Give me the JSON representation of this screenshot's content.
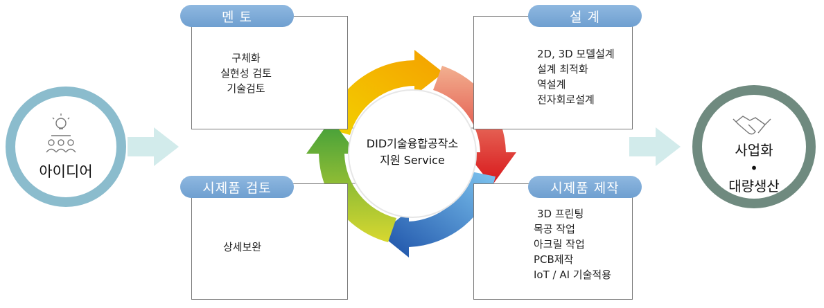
{
  "center": {
    "line1": "DID기술융합공작소",
    "line2": "지원 Service"
  },
  "idea": {
    "label": "아이디어"
  },
  "production": {
    "line1": "사업화",
    "bullet": "•",
    "line2": "대량생산"
  },
  "boxes": {
    "mentoring": {
      "title": "멘 토",
      "items": [
        "구체화",
        "실현성 검토",
        "기술검토"
      ]
    },
    "design": {
      "title": "설 계",
      "items": [
        "2D, 3D 모델설계",
        "설계 최적화",
        "역설계",
        "전자회로설계"
      ]
    },
    "prototype_review": {
      "title": "시제품 검토",
      "items": [
        "상세보완"
      ]
    },
    "prototype_making": {
      "title": "시제품 제작",
      "items": [
        "3D 프린팅",
        "목공 작업",
        "아크릴 작업",
        "PCB제작",
        "IoT / AI 기술적용"
      ]
    }
  },
  "icons": {
    "mentoring": "lightbulb-icon",
    "design": "pie-chart-icon",
    "prototype_review": "reading-person-icon",
    "prototype_making": "monitor-ruler-icon",
    "idea": "idea-people-icon",
    "production": "handshake-icon"
  },
  "colors": {
    "pill": "#7fa9d8",
    "idea_ring": "#8bbccd",
    "production_ring": "#6f8a7f",
    "arrow_light": "#d2ebeb"
  }
}
